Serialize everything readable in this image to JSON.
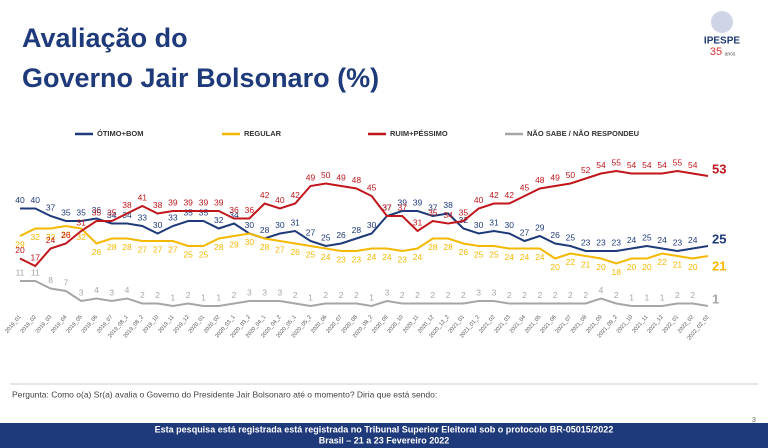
{
  "chart_data": {
    "type": "line",
    "title": "Avaliação do Governo Jair Bolsonaro (%)",
    "title_lines": [
      "Avaliação do",
      "Governo Jair Bolsonaro (%)"
    ],
    "logo": {
      "name": "IPESPE",
      "number": "35",
      "caption": "anos"
    },
    "categories": [
      "2019_01",
      "2019_02",
      "2019_03",
      "2019_04",
      "2019_05",
      "2019_06",
      "2019_07",
      "2019_08_1",
      "2019_08_2",
      "2019_10",
      "2019_11",
      "2019_12",
      "2020_01",
      "2020_02",
      "2020_03_1",
      "2020_03_2",
      "2020_04_1",
      "2020_04_2",
      "2020_05_1",
      "2020_05_2",
      "2020_06",
      "2020_07",
      "2020_08",
      "2020_08_2",
      "2020_09",
      "2020_10",
      "2020_11",
      "2020_12",
      "2020_12_2",
      "2021_01",
      "2021_01_2",
      "2021_02",
      "2021_03",
      "2021_04",
      "2021_05",
      "2021_06",
      "2021_07",
      "2021_08",
      "2021_09",
      "2021_09_2",
      "2021_10",
      "2021_11",
      "2021_12",
      "2022_01",
      "2022_02",
      "2022_02_02"
    ],
    "series": [
      {
        "name": "ÓTIMO+BOM",
        "color": "#1f3a7a",
        "values": [
          40,
          40,
          37,
          35,
          35,
          36,
          34,
          34,
          33,
          30,
          33,
          35,
          35,
          32,
          34,
          30,
          28,
          30,
          31,
          27,
          25,
          26,
          28,
          30,
          37,
          39,
          39,
          37,
          38,
          32,
          30,
          31,
          30,
          27,
          29,
          26,
          25,
          23,
          23,
          23,
          24,
          25,
          24,
          23,
          24,
          25
        ]
      },
      {
        "name": "REGULAR",
        "color": "#f5b800",
        "values": [
          29,
          32,
          32,
          33,
          32,
          26,
          28,
          28,
          27,
          27,
          27,
          25,
          25,
          28,
          29,
          30,
          28,
          27,
          26,
          25,
          24,
          23,
          23,
          24,
          24,
          23,
          24,
          28,
          28,
          26,
          25,
          25,
          24,
          24,
          24,
          20,
          22,
          21,
          20,
          18,
          20,
          20,
          22,
          21,
          20,
          21
        ]
      },
      {
        "name": "RUIM+PÉSSIMO",
        "color": "#c0161c",
        "values": [
          20,
          17,
          24,
          26,
          31,
          35,
          35,
          38,
          41,
          38,
          39,
          39,
          39,
          39,
          36,
          36,
          42,
          40,
          42,
          49,
          50,
          49,
          48,
          45,
          37,
          37,
          31,
          35,
          34,
          35,
          40,
          42,
          42,
          45,
          48,
          49,
          50,
          52,
          54,
          55,
          54,
          54,
          54,
          55,
          54,
          53
        ]
      },
      {
        "name": "NÃO SABE / NÃO RESPONDEU",
        "color": "#a6a6a6",
        "values": [
          11,
          11,
          8,
          7,
          3,
          4,
          3,
          4,
          2,
          2,
          1,
          2,
          1,
          1,
          2,
          3,
          3,
          3,
          2,
          1,
          2,
          2,
          2,
          1,
          3,
          2,
          2,
          2,
          2,
          2,
          3,
          3,
          2,
          2,
          2,
          2,
          2,
          2,
          4,
          2,
          1,
          1,
          1,
          2,
          2,
          1
        ]
      }
    ],
    "ylim": [
      0,
      60
    ],
    "question": "Pergunta: Como o(a) Sr(a) avalia o Governo do Presidente Jair Bolsonaro até o momento? Diria que está sendo:",
    "footer": [
      "Esta pesquisa está registrada está registrada no Tribunal Superior Eleitoral sob o protocolo BR-05015/2022",
      "Brasil – 21 a 23 Fevereiro 2022"
    ],
    "page_number": "3"
  }
}
